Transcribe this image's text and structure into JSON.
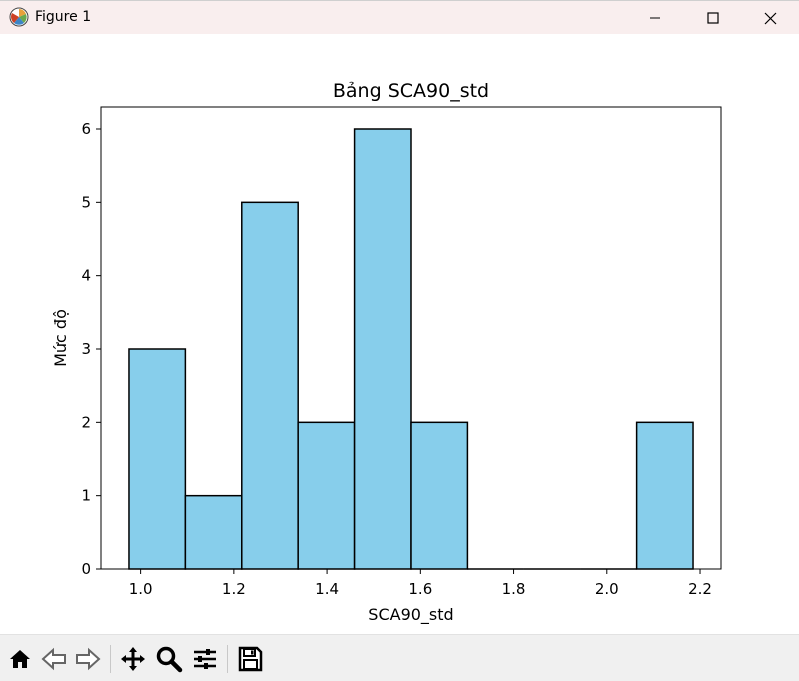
{
  "window": {
    "title": "Figure 1",
    "titlebar_color": "#f9eeee"
  },
  "toolbar": {
    "buttons": [
      "home-icon",
      "back-icon",
      "forward-icon",
      "pan-icon",
      "zoom-icon",
      "configure-subplots-icon",
      "save-icon"
    ]
  },
  "chart_data": {
    "type": "bar",
    "title": "Bảng SCA90_std",
    "xlabel": "SCA90_std",
    "ylabel": "Mức độ",
    "bar_color": "#87ceeb",
    "edge_color": "#000000",
    "bin_edges": [
      0.975,
      1.096,
      1.217,
      1.338,
      1.459,
      1.58,
      1.701,
      1.822,
      1.943,
      2.064,
      2.185
    ],
    "values": [
      3,
      1,
      5,
      2,
      6,
      2,
      0,
      0,
      0,
      2
    ],
    "xlim": [
      0.915,
      2.245
    ],
    "ylim": [
      0,
      6.3
    ],
    "xticks": [
      1.0,
      1.2,
      1.4,
      1.6,
      1.8,
      2.0,
      2.2
    ],
    "xtick_labels": [
      "1.0",
      "1.2",
      "1.4",
      "1.6",
      "1.8",
      "2.0",
      "2.2"
    ],
    "yticks": [
      0,
      1,
      2,
      3,
      4,
      5,
      6
    ],
    "ytick_labels": [
      "0",
      "1",
      "2",
      "3",
      "4",
      "5",
      "6"
    ],
    "grid": false,
    "legend": false
  }
}
